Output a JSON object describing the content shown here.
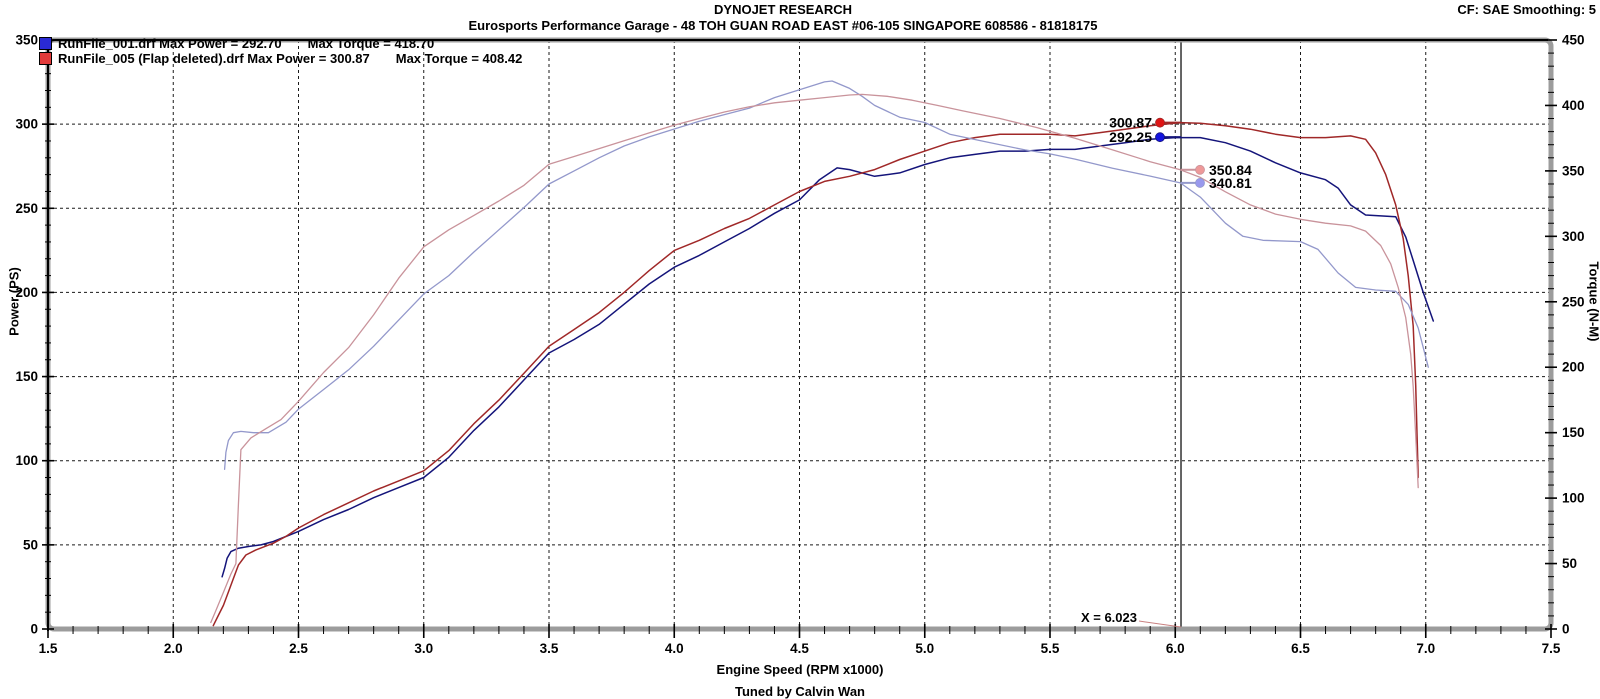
{
  "header": {
    "title": "DYNOJET RESEARCH",
    "subtitle": "Eurosports Performance Garage - 48 TOH GUAN ROAD EAST #06-105 SINGAPORE 608586 - 81818175",
    "correction": "CF: SAE  Smoothing: 5"
  },
  "legend": {
    "items": [
      {
        "swatch_color": "#2A2AD4",
        "power_text": "RunFile_001.drf Max Power = 292.70",
        "torque_text": "Max Torque = 418.70"
      },
      {
        "swatch_color": "#E23A3A",
        "power_text": "RunFile_005 (Flap deleted).drf Max Power = 300.87",
        "torque_text": "Max Torque = 408.42"
      }
    ]
  },
  "footer": {
    "xlabel": "Engine Speed (RPM x1000)",
    "credit": "Tuned by Calvin Wan"
  },
  "cursor": {
    "x": 6.023,
    "label": "X = 6.023",
    "readouts": [
      {
        "label": "300.87",
        "value": 300.87,
        "axis": "left",
        "side": "left",
        "marker_color": "#E01414",
        "connector_color": "#A02828"
      },
      {
        "label": "292.25",
        "value": 292.25,
        "axis": "left",
        "side": "left",
        "marker_color": "#1414E0",
        "connector_color": "#14147A"
      },
      {
        "label": "350.84",
        "value": 350.84,
        "axis": "right",
        "side": "right",
        "marker_color": "#EE9999",
        "connector_color": "#C9939B"
      },
      {
        "label": "340.81",
        "value": 340.81,
        "axis": "right",
        "side": "right",
        "marker_color": "#9999EE",
        "connector_color": "#9398CB"
      }
    ]
  },
  "chart_data": {
    "type": "line",
    "title": "DYNOJET RESEARCH",
    "xlabel": "Engine Speed (RPM x1000)",
    "x_range": [
      1.5,
      7.5
    ],
    "x_major_step": 0.5,
    "x_minor_step": 0.1,
    "grid": "dashed",
    "y_left": {
      "label": "Power (PS)",
      "range": [
        0,
        350
      ],
      "major_step": 50,
      "minor_step": 10
    },
    "y_right": {
      "label": "Torque (N-M)",
      "range": [
        0,
        450
      ],
      "major_step": 50,
      "minor_step": 10
    },
    "cursor_x": 6.023,
    "series": [
      {
        "name": "power-runfile-001",
        "legend": "RunFile_001.drf",
        "axis": "left",
        "color": "#14147A",
        "width": 1.5,
        "max_label": 292.7,
        "points": [
          [
            2.195,
            31
          ],
          [
            2.205,
            36
          ],
          [
            2.215,
            42
          ],
          [
            2.23,
            46
          ],
          [
            2.26,
            48
          ],
          [
            2.3,
            49
          ],
          [
            2.35,
            50
          ],
          [
            2.4,
            52
          ],
          [
            2.5,
            58
          ],
          [
            2.6,
            65
          ],
          [
            2.7,
            71
          ],
          [
            2.8,
            78
          ],
          [
            2.9,
            84
          ],
          [
            3.0,
            90
          ],
          [
            3.1,
            102
          ],
          [
            3.2,
            118
          ],
          [
            3.3,
            132
          ],
          [
            3.4,
            148
          ],
          [
            3.5,
            164
          ],
          [
            3.6,
            172
          ],
          [
            3.7,
            181
          ],
          [
            3.8,
            193
          ],
          [
            3.9,
            205
          ],
          [
            4.0,
            215
          ],
          [
            4.1,
            222
          ],
          [
            4.2,
            230
          ],
          [
            4.3,
            238
          ],
          [
            4.4,
            247
          ],
          [
            4.5,
            255
          ],
          [
            4.58,
            267
          ],
          [
            4.65,
            274
          ],
          [
            4.7,
            273
          ],
          [
            4.8,
            269
          ],
          [
            4.9,
            271
          ],
          [
            5.0,
            276
          ],
          [
            5.1,
            280
          ],
          [
            5.2,
            282
          ],
          [
            5.3,
            284
          ],
          [
            5.4,
            284
          ],
          [
            5.5,
            285
          ],
          [
            5.6,
            285
          ],
          [
            5.7,
            287
          ],
          [
            5.8,
            289
          ],
          [
            5.9,
            291
          ],
          [
            6.0,
            292
          ],
          [
            6.1,
            292
          ],
          [
            6.2,
            289
          ],
          [
            6.3,
            284
          ],
          [
            6.4,
            277
          ],
          [
            6.5,
            271
          ],
          [
            6.6,
            267
          ],
          [
            6.65,
            262
          ],
          [
            6.7,
            252
          ],
          [
            6.76,
            246
          ],
          [
            6.88,
            245
          ],
          [
            6.92,
            233
          ],
          [
            6.95,
            219
          ],
          [
            6.99,
            200
          ],
          [
            7.03,
            183
          ]
        ]
      },
      {
        "name": "power-runfile-005",
        "legend": "RunFile_005 (Flap deleted).drf",
        "axis": "left",
        "color": "#A02828",
        "width": 1.5,
        "max_label": 300.87,
        "points": [
          [
            2.16,
            2
          ],
          [
            2.18,
            8
          ],
          [
            2.2,
            14
          ],
          [
            2.22,
            22
          ],
          [
            2.24,
            30
          ],
          [
            2.26,
            38
          ],
          [
            2.29,
            44
          ],
          [
            2.33,
            47
          ],
          [
            2.4,
            51
          ],
          [
            2.45,
            55
          ],
          [
            2.5,
            60
          ],
          [
            2.6,
            68
          ],
          [
            2.7,
            75
          ],
          [
            2.8,
            82
          ],
          [
            2.9,
            88
          ],
          [
            3.0,
            94
          ],
          [
            3.1,
            106
          ],
          [
            3.2,
            122
          ],
          [
            3.3,
            136
          ],
          [
            3.4,
            152
          ],
          [
            3.5,
            168
          ],
          [
            3.6,
            178
          ],
          [
            3.7,
            188
          ],
          [
            3.8,
            200
          ],
          [
            3.9,
            213
          ],
          [
            4.0,
            225
          ],
          [
            4.1,
            231
          ],
          [
            4.2,
            238
          ],
          [
            4.3,
            244
          ],
          [
            4.4,
            252
          ],
          [
            4.5,
            260
          ],
          [
            4.6,
            266
          ],
          [
            4.7,
            269
          ],
          [
            4.8,
            273
          ],
          [
            4.9,
            279
          ],
          [
            5.0,
            284
          ],
          [
            5.1,
            289
          ],
          [
            5.2,
            292
          ],
          [
            5.3,
            294
          ],
          [
            5.4,
            294
          ],
          [
            5.5,
            294
          ],
          [
            5.6,
            293
          ],
          [
            5.7,
            295
          ],
          [
            5.8,
            297
          ],
          [
            5.9,
            299
          ],
          [
            6.02,
            300.9
          ],
          [
            6.1,
            300.5
          ],
          [
            6.2,
            299
          ],
          [
            6.3,
            297
          ],
          [
            6.4,
            294
          ],
          [
            6.5,
            292
          ],
          [
            6.6,
            292
          ],
          [
            6.7,
            293
          ],
          [
            6.76,
            291
          ],
          [
            6.8,
            283
          ],
          [
            6.84,
            270
          ],
          [
            6.88,
            252
          ],
          [
            6.91,
            232
          ],
          [
            6.93,
            210
          ],
          [
            6.95,
            180
          ],
          [
            6.96,
            145
          ],
          [
            6.97,
            90
          ]
        ]
      },
      {
        "name": "torque-runfile-001",
        "legend": "RunFile_001.drf",
        "axis": "right",
        "color": "#9398CB",
        "width": 1.3,
        "max_label": 418.7,
        "points": [
          [
            2.205,
            122
          ],
          [
            2.21,
            135
          ],
          [
            2.22,
            144
          ],
          [
            2.24,
            150
          ],
          [
            2.27,
            151
          ],
          [
            2.32,
            150
          ],
          [
            2.38,
            150
          ],
          [
            2.45,
            158
          ],
          [
            2.5,
            168
          ],
          [
            2.6,
            183
          ],
          [
            2.7,
            198
          ],
          [
            2.8,
            216
          ],
          [
            2.9,
            236
          ],
          [
            3.0,
            256
          ],
          [
            3.1,
            270
          ],
          [
            3.2,
            288
          ],
          [
            3.3,
            305
          ],
          [
            3.4,
            322
          ],
          [
            3.5,
            340
          ],
          [
            3.6,
            350
          ],
          [
            3.7,
            360
          ],
          [
            3.8,
            369
          ],
          [
            3.9,
            376
          ],
          [
            4.0,
            382
          ],
          [
            4.1,
            388
          ],
          [
            4.2,
            393
          ],
          [
            4.3,
            398
          ],
          [
            4.4,
            406
          ],
          [
            4.5,
            412
          ],
          [
            4.6,
            418
          ],
          [
            4.63,
            418.7
          ],
          [
            4.7,
            413
          ],
          [
            4.75,
            407
          ],
          [
            4.8,
            400
          ],
          [
            4.9,
            391
          ],
          [
            5.0,
            387
          ],
          [
            5.1,
            378
          ],
          [
            5.25,
            372
          ],
          [
            5.4,
            366
          ],
          [
            5.5,
            363
          ],
          [
            5.6,
            359
          ],
          [
            5.75,
            352
          ],
          [
            5.9,
            346
          ],
          [
            6.02,
            340.8
          ],
          [
            6.1,
            330
          ],
          [
            6.2,
            310
          ],
          [
            6.27,
            300
          ],
          [
            6.35,
            297
          ],
          [
            6.5,
            296
          ],
          [
            6.57,
            290
          ],
          [
            6.65,
            272
          ],
          [
            6.72,
            261
          ],
          [
            6.8,
            259
          ],
          [
            6.88,
            258
          ],
          [
            6.93,
            248
          ],
          [
            6.97,
            230
          ],
          [
            7.01,
            200
          ]
        ]
      },
      {
        "name": "torque-runfile-005",
        "legend": "RunFile_005 (Flap deleted).drf",
        "axis": "right",
        "color": "#C9939B",
        "width": 1.3,
        "max_label": 408.42,
        "points": [
          [
            2.15,
            5
          ],
          [
            2.17,
            14
          ],
          [
            2.2,
            28
          ],
          [
            2.23,
            42
          ],
          [
            2.25,
            50
          ],
          [
            2.26,
            95
          ],
          [
            2.27,
            137
          ],
          [
            2.31,
            146
          ],
          [
            2.37,
            153
          ],
          [
            2.43,
            160
          ],
          [
            2.5,
            174
          ],
          [
            2.6,
            196
          ],
          [
            2.7,
            215
          ],
          [
            2.8,
            240
          ],
          [
            2.9,
            268
          ],
          [
            3.0,
            292
          ],
          [
            3.1,
            305
          ],
          [
            3.2,
            316
          ],
          [
            3.3,
            327
          ],
          [
            3.4,
            339
          ],
          [
            3.5,
            355
          ],
          [
            3.6,
            361
          ],
          [
            3.7,
            367
          ],
          [
            3.8,
            373
          ],
          [
            3.9,
            379
          ],
          [
            4.0,
            385
          ],
          [
            4.1,
            390
          ],
          [
            4.2,
            395
          ],
          [
            4.3,
            399
          ],
          [
            4.4,
            402
          ],
          [
            4.5,
            404
          ],
          [
            4.6,
            406
          ],
          [
            4.7,
            408
          ],
          [
            4.75,
            408.4
          ],
          [
            4.85,
            407
          ],
          [
            4.95,
            404
          ],
          [
            5.05,
            400
          ],
          [
            5.15,
            396
          ],
          [
            5.3,
            390
          ],
          [
            5.45,
            383
          ],
          [
            5.6,
            375
          ],
          [
            5.75,
            366
          ],
          [
            5.9,
            357
          ],
          [
            6.02,
            350.8
          ],
          [
            6.1,
            345
          ],
          [
            6.2,
            334
          ],
          [
            6.3,
            324
          ],
          [
            6.4,
            317
          ],
          [
            6.5,
            313
          ],
          [
            6.6,
            310
          ],
          [
            6.7,
            308
          ],
          [
            6.76,
            304
          ],
          [
            6.82,
            293
          ],
          [
            6.86,
            279
          ],
          [
            6.89,
            261
          ],
          [
            6.92,
            238
          ],
          [
            6.94,
            210
          ],
          [
            6.95,
            185
          ],
          [
            6.96,
            148
          ],
          [
            6.97,
            108
          ]
        ]
      }
    ]
  }
}
